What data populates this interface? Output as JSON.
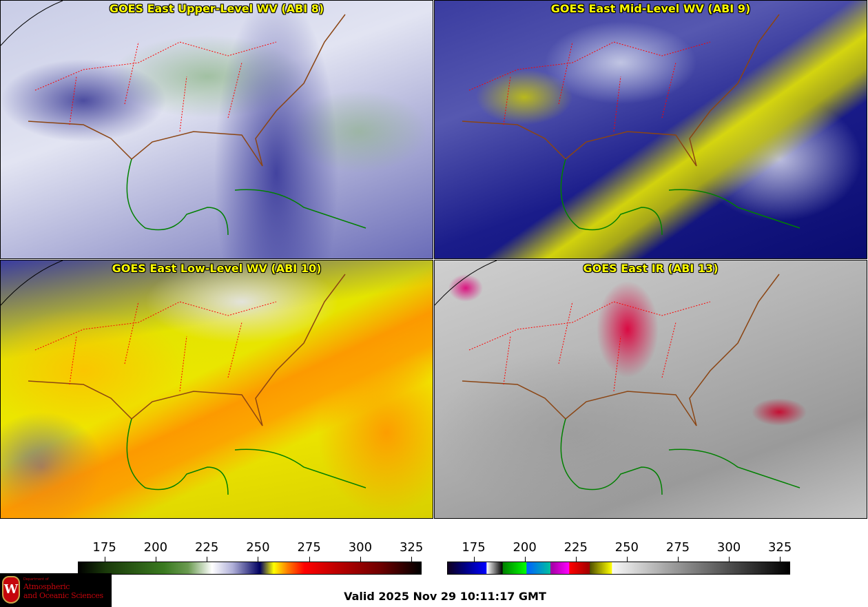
{
  "panels": [
    {
      "title": "GOES East Upper-Level WV (ABI 8)"
    },
    {
      "title": "GOES East Mid-Level WV (ABI 9)"
    },
    {
      "title": "GOES East Low-Level WV (ABI 10)"
    },
    {
      "title": "GOES East IR (ABI 13)"
    }
  ],
  "colorbars": [
    {
      "name": "water-vapor",
      "range": [
        162,
        330
      ],
      "ticks": [
        "175",
        "200",
        "225",
        "250",
        "275",
        "300",
        "325"
      ]
    },
    {
      "name": "infrared",
      "range": [
        162,
        330
      ],
      "ticks": [
        "175",
        "200",
        "225",
        "250",
        "275",
        "300",
        "325"
      ]
    }
  ],
  "logo": {
    "dept": "Department of",
    "line1": "Atmospheric",
    "line2": "and Oceanic Sciences",
    "crest": "W"
  },
  "valid_time": "Valid 2025 Nov 29 10:11:17 GMT",
  "colors": {
    "title": "#ffff00",
    "state_borders": "#ff0000",
    "coastline": "#008000",
    "country_border": "#8b4513"
  }
}
